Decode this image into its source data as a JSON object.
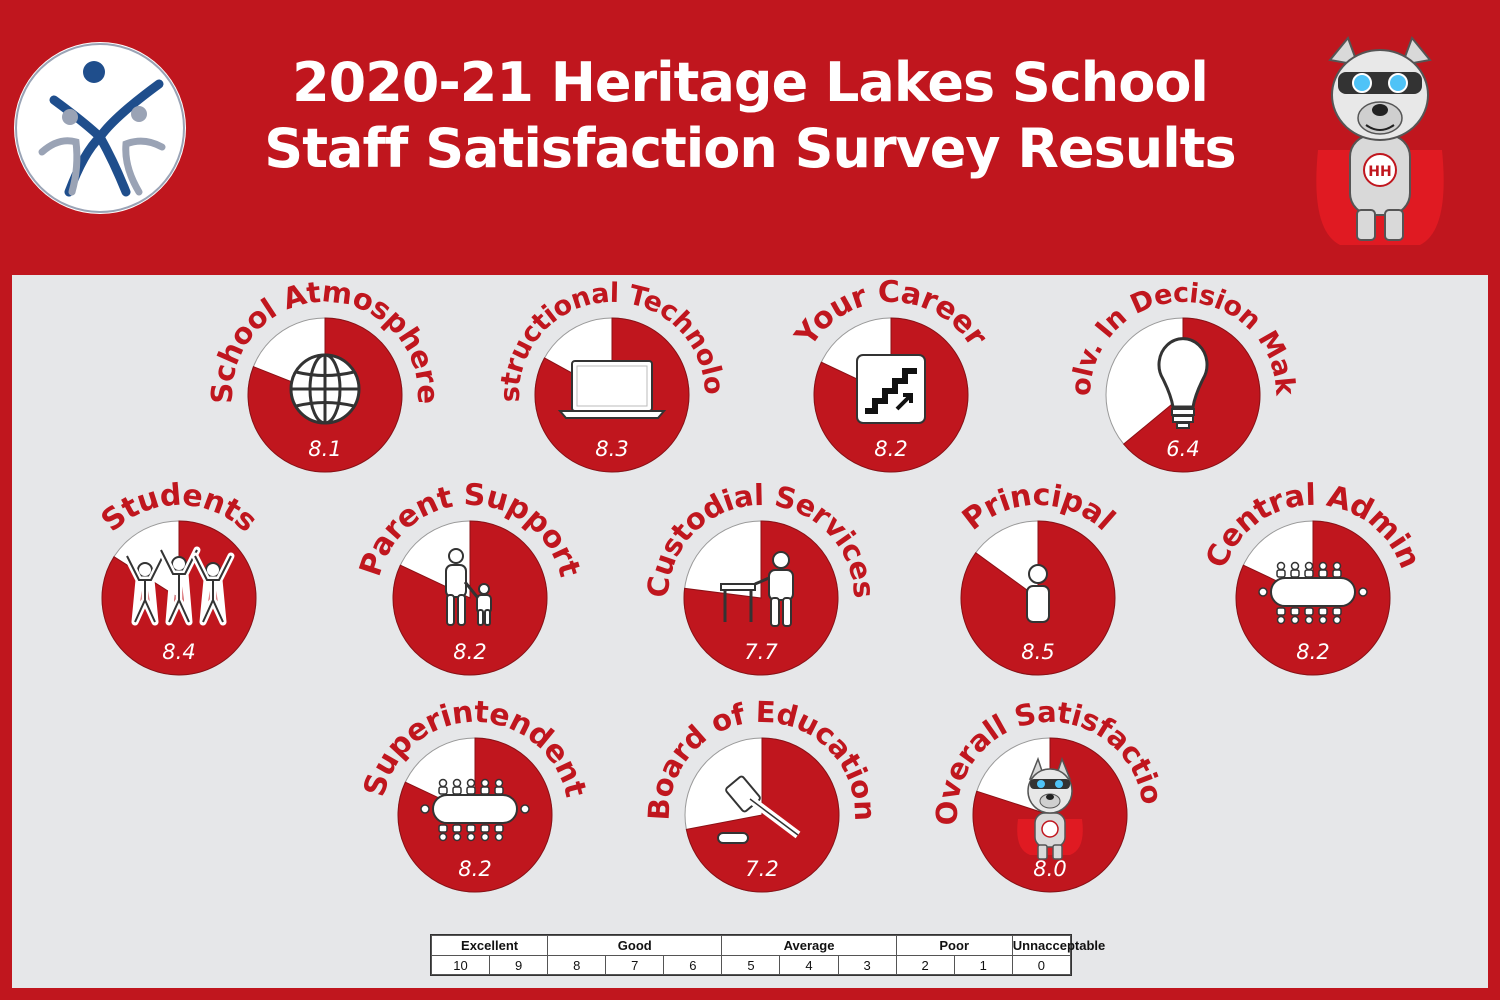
{
  "header": {
    "title_line1": "2020-21 Heritage Lakes School",
    "title_line2": "Staff Satisfaction Survey Results"
  },
  "colors": {
    "accent": "#c0161e",
    "slice_bg": "#ffffff",
    "panel": "#e6e7e9"
  },
  "chart_data": {
    "type": "pie",
    "scale": [
      0,
      10
    ],
    "items": [
      {
        "label": "School Atmosphere",
        "value": 8.1,
        "display": "8.1",
        "icon": "globe-icon"
      },
      {
        "label": "Instructional Technology",
        "value": 8.3,
        "display": "8.3",
        "icon": "laptop-icon"
      },
      {
        "label": "Your Career",
        "value": 8.2,
        "display": "8.2",
        "icon": "stairs-icon"
      },
      {
        "label": "Involv. In Decision Making",
        "value": 6.4,
        "display": "6.4",
        "icon": "lightbulb-icon"
      },
      {
        "label": "Students",
        "value": 8.4,
        "display": "8.4",
        "icon": "people-cheering-icon"
      },
      {
        "label": "Parent Support",
        "value": 8.2,
        "display": "8.2",
        "icon": "parent-child-icon"
      },
      {
        "label": "Custodial Services",
        "value": 7.7,
        "display": "7.7",
        "icon": "custodian-icon"
      },
      {
        "label": "Principal",
        "value": 8.5,
        "display": "8.5",
        "icon": "person-icon"
      },
      {
        "label": "Central Admin",
        "value": 8.2,
        "display": "8.2",
        "icon": "conference-table-icon"
      },
      {
        "label": "Superintendent",
        "value": 8.2,
        "display": "8.2",
        "icon": "conference-table-icon"
      },
      {
        "label": "Board of Education",
        "value": 7.2,
        "display": "7.2",
        "icon": "gavel-icon"
      },
      {
        "label": "Overall Satisfaction",
        "value": 8.0,
        "display": "8.0",
        "icon": "mascot-icon"
      }
    ]
  },
  "legend": {
    "categories": [
      {
        "label": "Excellent",
        "span": 2
      },
      {
        "label": "Good",
        "span": 3
      },
      {
        "label": "Average",
        "span": 3
      },
      {
        "label": "Poor",
        "span": 2
      },
      {
        "label": "Unnacceptable",
        "span": 1
      }
    ],
    "scores": [
      "10",
      "9",
      "8",
      "7",
      "6",
      "5",
      "4",
      "3",
      "2",
      "1",
      "0"
    ]
  }
}
